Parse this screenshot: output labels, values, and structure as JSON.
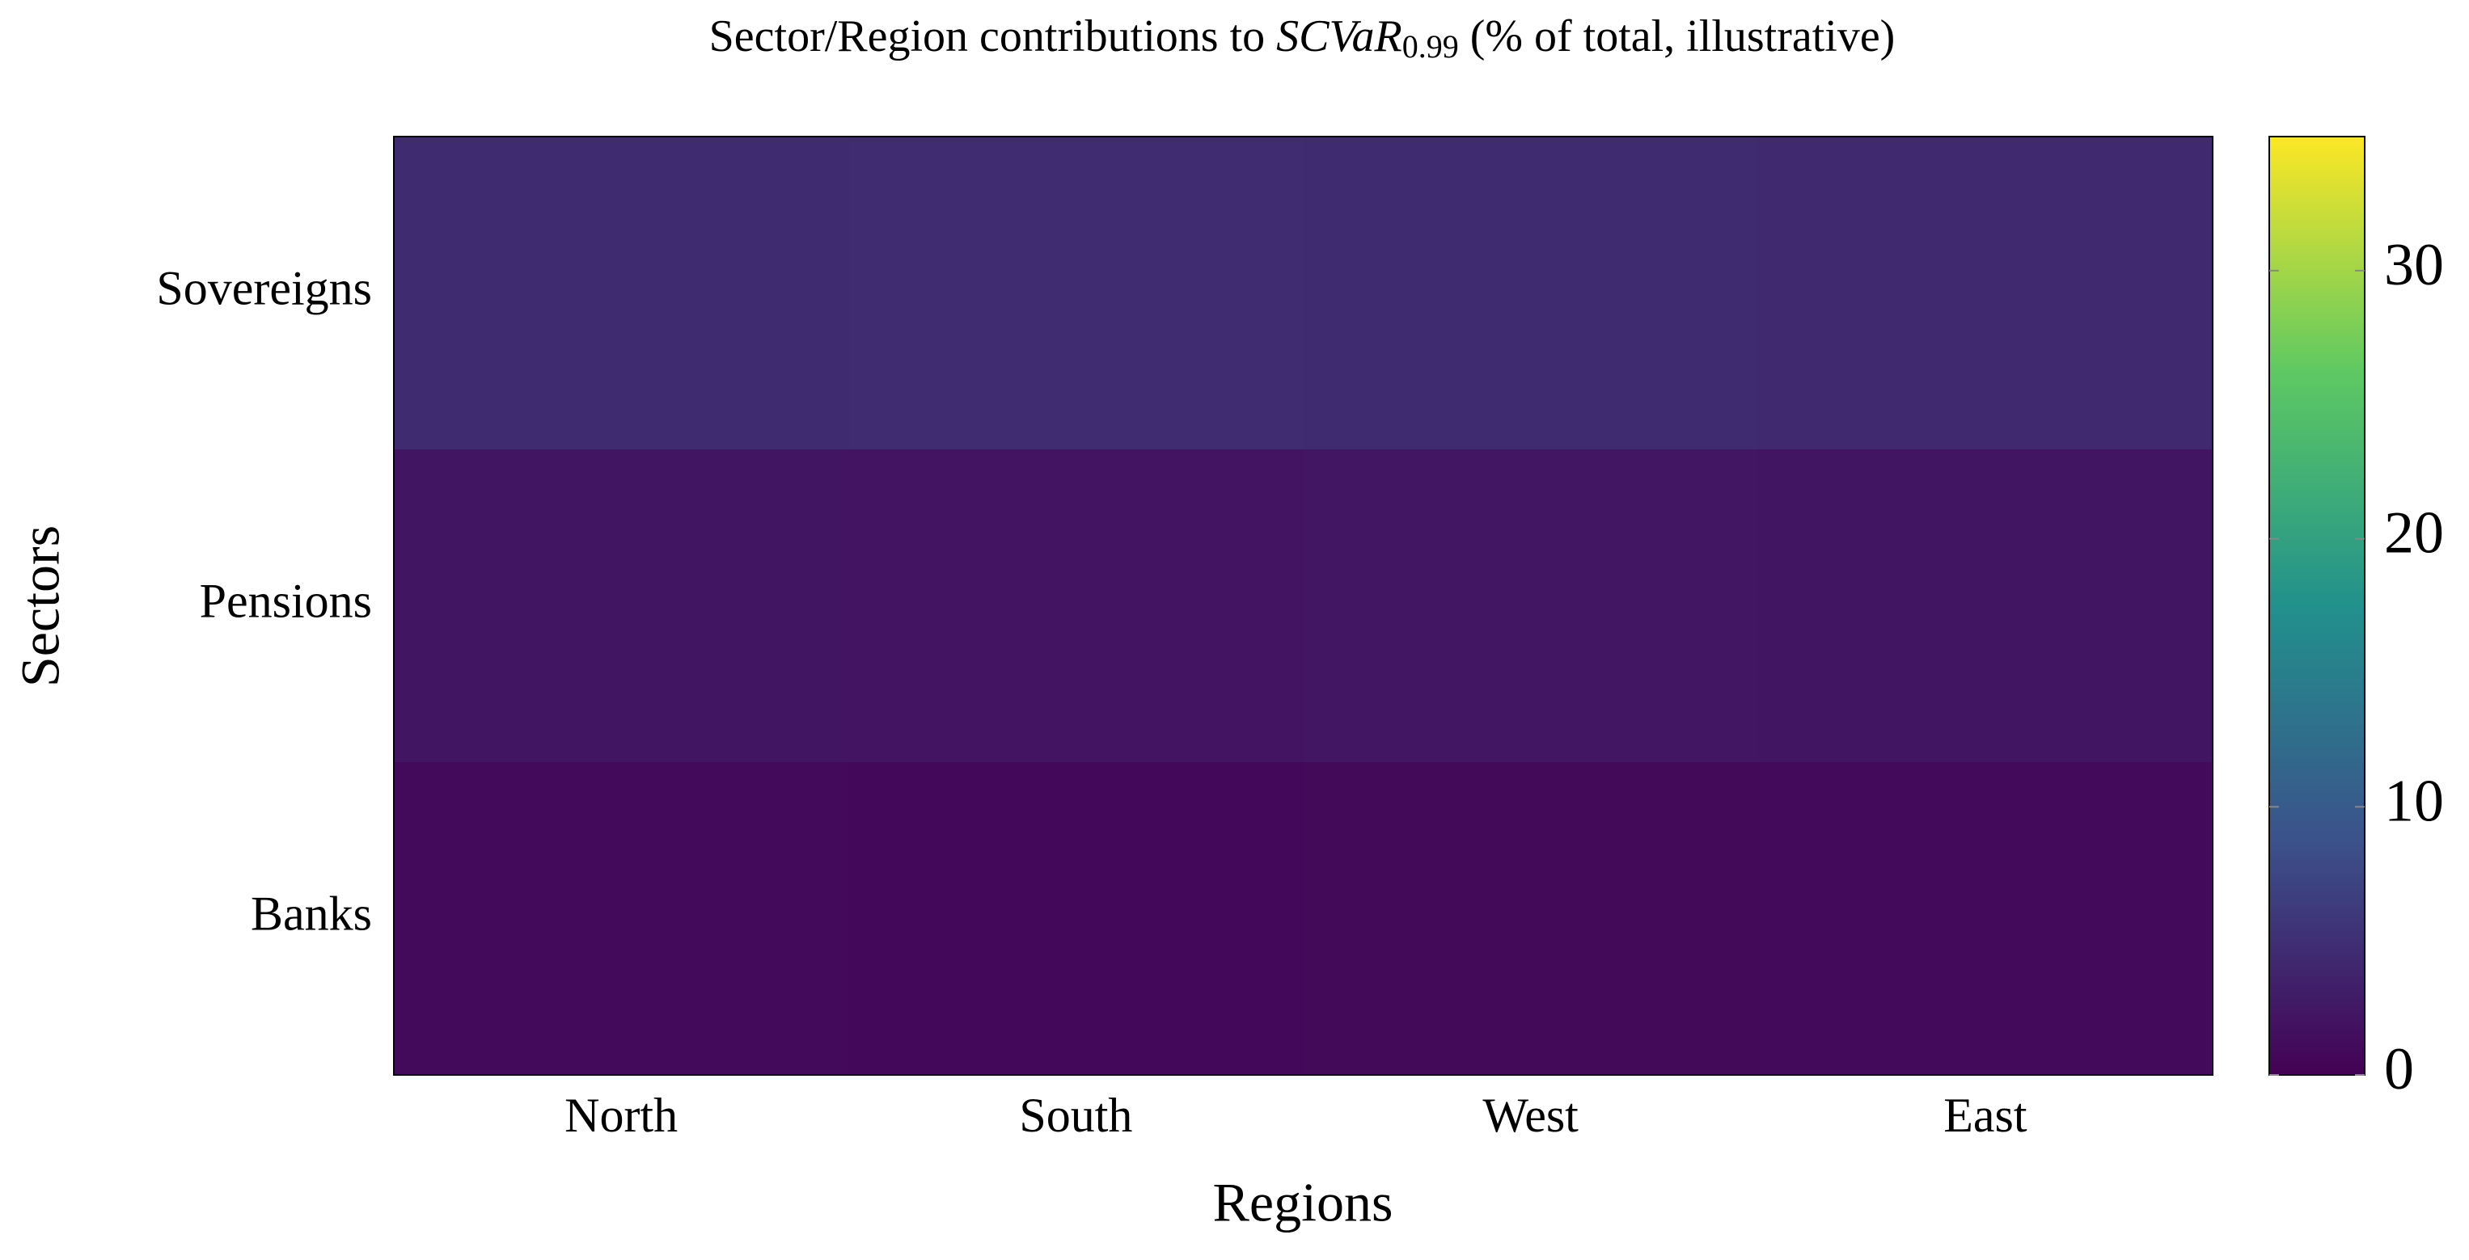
{
  "chart_data": {
    "type": "heatmap",
    "title": "Sector/Region contributions to",
    "title_math": "SCVaR",
    "title_subscript": "0.99",
    "title_suffix": "(% of total, illustrative)",
    "x_label": "Regions",
    "y_label": "Sectors",
    "x_categories": [
      "North",
      "South",
      "West",
      "East"
    ],
    "y_categories": [
      "Sovereigns",
      "Pensions",
      "Banks"
    ],
    "values": [
      [
        4.5,
        4.6,
        4.5,
        4.3
      ],
      [
        2.2,
        2.1,
        2.3,
        2.2
      ],
      [
        0.9,
        0.8,
        1.0,
        0.9
      ]
    ],
    "colormap": "viridis",
    "clim": [
      0,
      35
    ],
    "cticks": [
      0,
      10,
      20,
      30
    ]
  }
}
